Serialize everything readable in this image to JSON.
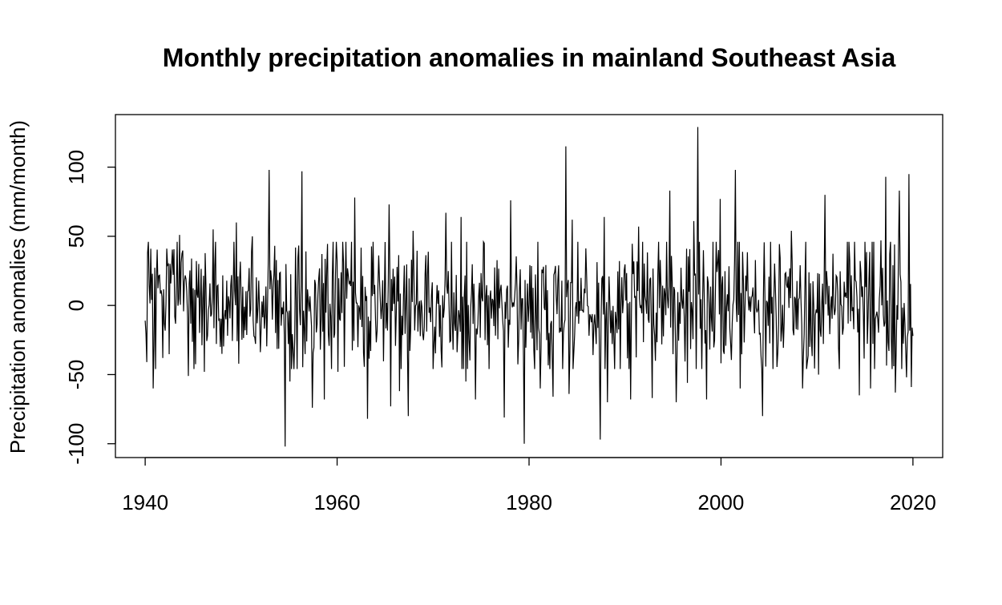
{
  "chart_data": {
    "type": "line",
    "title": "Monthly precipitation anomalies in mainland Southeast Asia",
    "xlabel": "",
    "ylabel": "Precipitation anomalies (mm/month)",
    "xlim": [
      1936.9,
      2023.1
    ],
    "ylim": [
      -110,
      138
    ],
    "x_ticks": [
      1940,
      1960,
      1980,
      2000,
      2020
    ],
    "x_tick_labels": [
      "1940",
      "1960",
      "1980",
      "2000",
      "2020"
    ],
    "y_ticks": [
      -100,
      -50,
      0,
      50,
      100
    ],
    "y_tick_labels": [
      "-100",
      "-50",
      "0",
      "50",
      "100"
    ],
    "grid": false,
    "legend": "none",
    "line_color": "#000000",
    "series": [
      {
        "name": "Monthly precipitation anomaly",
        "x_start": 1940,
        "x_step_months": 1,
        "keypoints": [
          [
            1940.0,
            -11
          ],
          [
            1940.2,
            -41
          ],
          [
            1940.4,
            15
          ],
          [
            1940.6,
            41
          ],
          [
            1940.8,
            -60
          ],
          [
            1941.2,
            17
          ],
          [
            1941.8,
            -38
          ],
          [
            1942.3,
            29
          ],
          [
            1943.6,
            51
          ],
          [
            1944.5,
            -51
          ],
          [
            1946.2,
            -48
          ],
          [
            1947.1,
            55
          ],
          [
            1948.0,
            -35
          ],
          [
            1949.5,
            60
          ],
          [
            1950.4,
            -18
          ],
          [
            1951.2,
            50
          ],
          [
            1952.9,
            98
          ],
          [
            1953.6,
            -20
          ],
          [
            1954.6,
            -102
          ],
          [
            1955.1,
            -55
          ],
          [
            1956.3,
            97
          ],
          [
            1957.4,
            -74
          ],
          [
            1958.7,
            -68
          ],
          [
            1960.1,
            -48
          ],
          [
            1961.8,
            78
          ],
          [
            1963.2,
            -82
          ],
          [
            1965.4,
            73
          ],
          [
            1965.6,
            -73
          ],
          [
            1966.5,
            -62
          ],
          [
            1967.4,
            -80
          ],
          [
            1967.9,
            54
          ],
          [
            1971.3,
            67
          ],
          [
            1972.9,
            64
          ],
          [
            1973.4,
            -55
          ],
          [
            1974.4,
            -68
          ],
          [
            1977.4,
            -81
          ],
          [
            1978.1,
            76
          ],
          [
            1979.5,
            -100
          ],
          [
            1981.2,
            -60
          ],
          [
            1982.5,
            -66
          ],
          [
            1983.8,
            115
          ],
          [
            1984.2,
            -64
          ],
          [
            1984.5,
            62
          ],
          [
            1987.4,
            -97
          ],
          [
            1987.8,
            64
          ],
          [
            1988.2,
            -70
          ],
          [
            1990.6,
            -68
          ],
          [
            1991.4,
            57
          ],
          [
            1992.8,
            -67
          ],
          [
            1994.7,
            83
          ],
          [
            1995.3,
            -70
          ],
          [
            1996.5,
            -56
          ],
          [
            1997.2,
            61
          ],
          [
            1997.6,
            129
          ],
          [
            1998.5,
            -68
          ],
          [
            1999.9,
            77
          ],
          [
            2001.5,
            98
          ],
          [
            2002.0,
            -60
          ],
          [
            2004.3,
            -80
          ],
          [
            2007.3,
            54
          ],
          [
            2008.5,
            -60
          ],
          [
            2010.2,
            -50
          ],
          [
            2010.8,
            80
          ],
          [
            2012.3,
            -46
          ],
          [
            2014.4,
            -65
          ],
          [
            2015.6,
            -60
          ],
          [
            2016.7,
            47
          ],
          [
            2017.2,
            93
          ],
          [
            2018.2,
            -63
          ],
          [
            2018.6,
            83
          ],
          [
            2019.3,
            -52
          ],
          [
            2019.6,
            95
          ],
          [
            2019.8,
            -59
          ],
          [
            2019.9,
            -16
          ],
          [
            2020.0,
            -22
          ]
        ]
      }
    ]
  }
}
